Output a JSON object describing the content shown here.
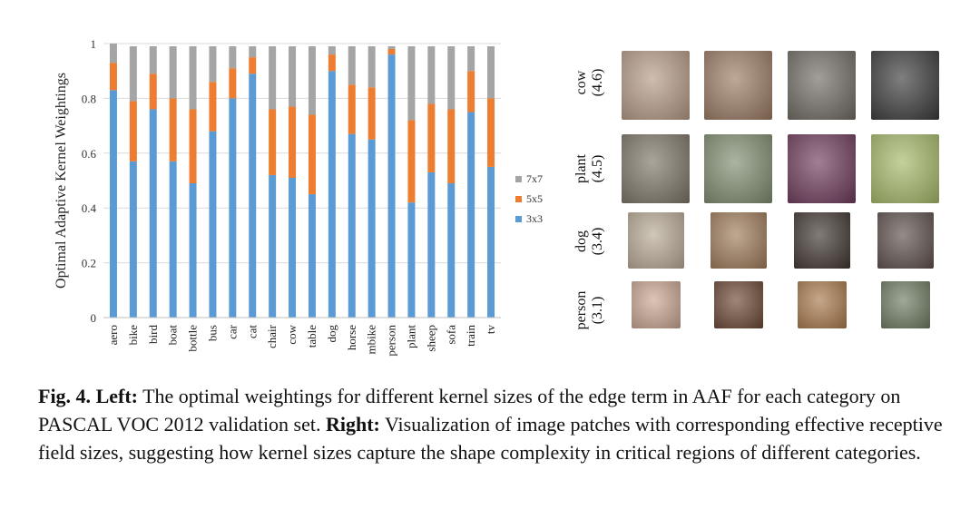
{
  "chart_data": {
    "type": "bar",
    "stacked": true,
    "ylabel": "Optimal Adaptive Kernel Weightings",
    "xlabel": "",
    "ylim": [
      0,
      1
    ],
    "yticks": [
      "0",
      "0.2",
      "0.4",
      "0.6",
      "0.8",
      "1"
    ],
    "grid": true,
    "legend_position": "right",
    "categories": [
      "aero",
      "bike",
      "bird",
      "boat",
      "bottle",
      "bus",
      "car",
      "cat",
      "chair",
      "cow",
      "table",
      "dog",
      "horse",
      "mbike",
      "person",
      "plant",
      "sheep",
      "sofa",
      "train",
      "tv"
    ],
    "series": [
      {
        "name": "3x3",
        "color": "#5b9bd5",
        "values": [
          0.83,
          0.57,
          0.76,
          0.57,
          0.49,
          0.68,
          0.8,
          0.89,
          0.52,
          0.51,
          0.45,
          0.9,
          0.67,
          0.65,
          0.96,
          0.42,
          0.53,
          0.49,
          0.75,
          0.55
        ]
      },
      {
        "name": "5x5",
        "color": "#ed7d31",
        "values": [
          0.1,
          0.22,
          0.13,
          0.23,
          0.27,
          0.18,
          0.11,
          0.06,
          0.24,
          0.26,
          0.29,
          0.06,
          0.18,
          0.19,
          0.02,
          0.3,
          0.25,
          0.27,
          0.15,
          0.25
        ]
      },
      {
        "name": "7x7",
        "color": "#a5a5a5",
        "values": [
          0.07,
          0.2,
          0.1,
          0.19,
          0.23,
          0.13,
          0.08,
          0.04,
          0.23,
          0.22,
          0.25,
          0.03,
          0.14,
          0.15,
          0.01,
          0.27,
          0.21,
          0.23,
          0.09,
          0.19
        ]
      }
    ]
  },
  "patches": {
    "rows": [
      {
        "name": "cow",
        "value": "(4.6)",
        "thumb_colors": [
          "#b59a86",
          "#9a7a62",
          "#6f6a62",
          "#3a3a3a"
        ]
      },
      {
        "name": "plant",
        "value": "(4.5)",
        "thumb_colors": [
          "#7c7466",
          "#7e8c6e",
          "#6e3a5a",
          "#a6b868"
        ]
      },
      {
        "name": "dog",
        "value": "(3.4)",
        "thumb_colors": [
          "#b8a994",
          "#9e7a58",
          "#3e342e",
          "#5c4e4a"
        ]
      },
      {
        "name": "person",
        "value": "(3.1)",
        "thumb_colors": [
          "#c9a590",
          "#6a4632",
          "#a8784a",
          "#6d7a60"
        ]
      }
    ]
  },
  "caption": {
    "fig_label": "Fig. 4.",
    "left_label": "Left:",
    "left_text": " The optimal weightings for different kernel sizes of the edge term in AAF for each category on PASCAL VOC 2012 validation set. ",
    "right_label": "Right:",
    "right_text": " Visualization of image patches with corresponding effective receptive field sizes, suggesting how kernel sizes capture the shape complexity in critical regions of different categories."
  }
}
